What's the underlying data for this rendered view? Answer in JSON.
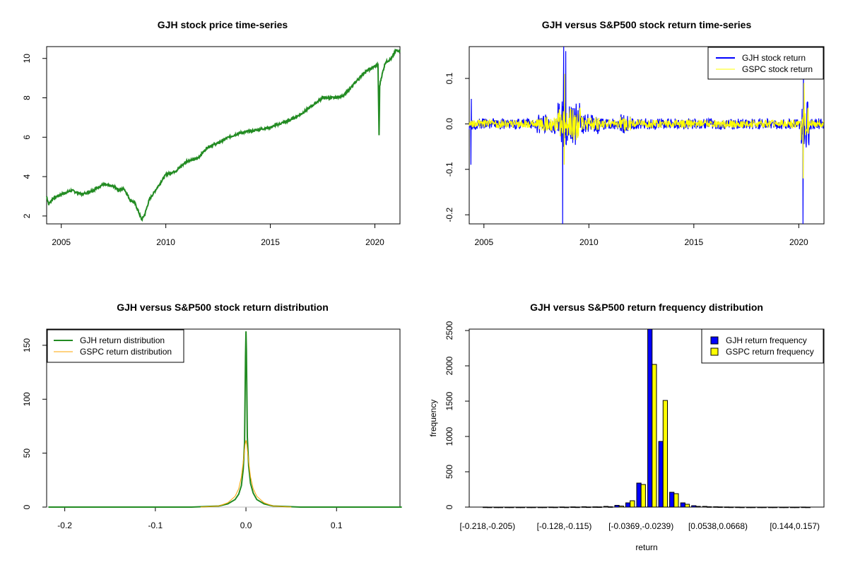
{
  "chart_data": [
    {
      "type": "line",
      "title": "GJH stock price time-series",
      "xlim": [
        2004.3,
        2021.2
      ],
      "ylim": [
        1.6,
        10.6
      ],
      "x_ticks": [
        2005,
        2010,
        2015,
        2020
      ],
      "x_tick_labels": [
        "2005",
        "2010",
        "2015",
        "2020"
      ],
      "y_ticks": [
        2,
        4,
        6,
        8,
        10
      ],
      "y_tick_labels": [
        "2",
        "4",
        "6",
        "8",
        "10"
      ],
      "series": [
        {
          "color": "#228b22",
          "x": [
            2004.3,
            2004.4,
            2004.6,
            2005.0,
            2005.5,
            2006.0,
            2006.5,
            2007.0,
            2007.5,
            2007.8,
            2008.0,
            2008.3,
            2008.5,
            2008.7,
            2008.85,
            2009.0,
            2009.2,
            2009.5,
            2010.0,
            2010.5,
            2011.0,
            2011.5,
            2012.0,
            2012.5,
            2013.0,
            2013.5,
            2014.0,
            2014.5,
            2015.0,
            2015.5,
            2016.0,
            2016.5,
            2017.0,
            2017.5,
            2018.0,
            2018.5,
            2019.0,
            2019.5,
            2020.0,
            2020.15,
            2020.2,
            2020.23,
            2020.3,
            2020.5,
            2020.8,
            2021.0,
            2021.2
          ],
          "y": [
            3.0,
            2.6,
            2.9,
            3.1,
            3.3,
            3.1,
            3.3,
            3.6,
            3.5,
            3.3,
            3.4,
            2.8,
            2.7,
            2.2,
            1.8,
            2.1,
            2.8,
            3.3,
            4.1,
            4.3,
            4.8,
            4.9,
            5.5,
            5.7,
            6.0,
            6.2,
            6.3,
            6.4,
            6.5,
            6.7,
            6.9,
            7.2,
            7.6,
            8.0,
            8.0,
            8.1,
            8.7,
            9.3,
            9.6,
            9.7,
            6.1,
            8.6,
            9.0,
            9.8,
            10.0,
            10.4,
            10.4
          ]
        }
      ]
    },
    {
      "type": "line",
      "title": "GJH versus S&P500 stock return time-series",
      "xlim": [
        2004.3,
        2021.2
      ],
      "ylim": [
        -0.22,
        0.17
      ],
      "x_ticks": [
        2005,
        2010,
        2015,
        2020
      ],
      "x_tick_labels": [
        "2005",
        "2010",
        "2015",
        "2020"
      ],
      "y_ticks": [
        -0.2,
        -0.1,
        0.0,
        0.1
      ],
      "y_tick_labels": [
        "-0.2",
        "-0.1",
        "0.0",
        "0.1"
      ],
      "legend": "top-right",
      "series": [
        {
          "name": "GJH stock return",
          "color": "#0000ff"
        },
        {
          "name": "GSPC stock return",
          "color": "#ffff00"
        }
      ]
    },
    {
      "type": "line",
      "title": "GJH versus S&P500 stock return distribution",
      "xlim": [
        -0.22,
        0.17
      ],
      "ylim": [
        0,
        165
      ],
      "x_ticks": [
        -0.2,
        -0.1,
        0.0,
        0.1
      ],
      "x_tick_labels": [
        "-0.2",
        "-0.1",
        "0.0",
        "0.1"
      ],
      "y_ticks": [
        0,
        50,
        100,
        150
      ],
      "y_tick_labels": [
        "0",
        "50",
        "100",
        "150"
      ],
      "legend": "top-left",
      "series": [
        {
          "name": "GJH return distribution",
          "color": "#228b22",
          "x": [
            -0.218,
            -0.06,
            -0.03,
            -0.02,
            -0.012,
            -0.008,
            -0.005,
            -0.003,
            -0.0015,
            -0.0005,
            0.0,
            0.0005,
            0.0015,
            0.003,
            0.005,
            0.008,
            0.012,
            0.02,
            0.03,
            0.06,
            0.172
          ],
          "y": [
            0,
            0,
            1,
            3,
            7,
            12,
            20,
            35,
            60,
            140,
            163,
            145,
            65,
            38,
            22,
            13,
            7,
            3,
            1,
            0,
            0
          ]
        },
        {
          "name": "GSPC return distribution",
          "color": "#ffa500",
          "x": [
            -0.05,
            -0.03,
            -0.02,
            -0.012,
            -0.008,
            -0.005,
            -0.003,
            -0.001,
            0.0,
            0.001,
            0.003,
            0.005,
            0.008,
            0.012,
            0.02,
            0.03,
            0.05
          ],
          "y": [
            0,
            1,
            4,
            10,
            17,
            28,
            42,
            58,
            62,
            58,
            42,
            28,
            17,
            10,
            4,
            1,
            0
          ]
        }
      ]
    },
    {
      "type": "bar",
      "title": "GJH versus S&P500 return frequency distribution",
      "xlabel": "return",
      "ylabel": "frequency",
      "ylim": [
        0,
        2520
      ],
      "y_ticks": [
        0,
        500,
        1000,
        1500,
        2000,
        2500
      ],
      "y_tick_labels": [
        "0",
        "500",
        "1000",
        "1500",
        "2000",
        "2500"
      ],
      "category_labels_shown": [
        "[-0.218,-0.205)",
        "[-0.128,-0.115)",
        "[-0.0369,-0.0239)",
        "[0.0538,0.0668)",
        "[0.144,0.157)"
      ],
      "legend": "top-right",
      "series": [
        {
          "name": "GJH return frequency",
          "color": "#0000ff",
          "values": [
            1,
            0,
            0,
            0,
            0,
            0,
            1,
            2,
            3,
            5,
            4,
            10,
            25,
            60,
            340,
            2550,
            930,
            210,
            60,
            20,
            10,
            5,
            2,
            1,
            0,
            0,
            0,
            0,
            0,
            1
          ]
        },
        {
          "name": "GSPC return frequency",
          "color": "#ffff00",
          "values": [
            0,
            0,
            0,
            0,
            0,
            0,
            0,
            0,
            1,
            2,
            3,
            5,
            15,
            90,
            320,
            2020,
            1510,
            190,
            40,
            10,
            5,
            3,
            1,
            0,
            0,
            0,
            0,
            0,
            0,
            0
          ]
        }
      ]
    }
  ]
}
